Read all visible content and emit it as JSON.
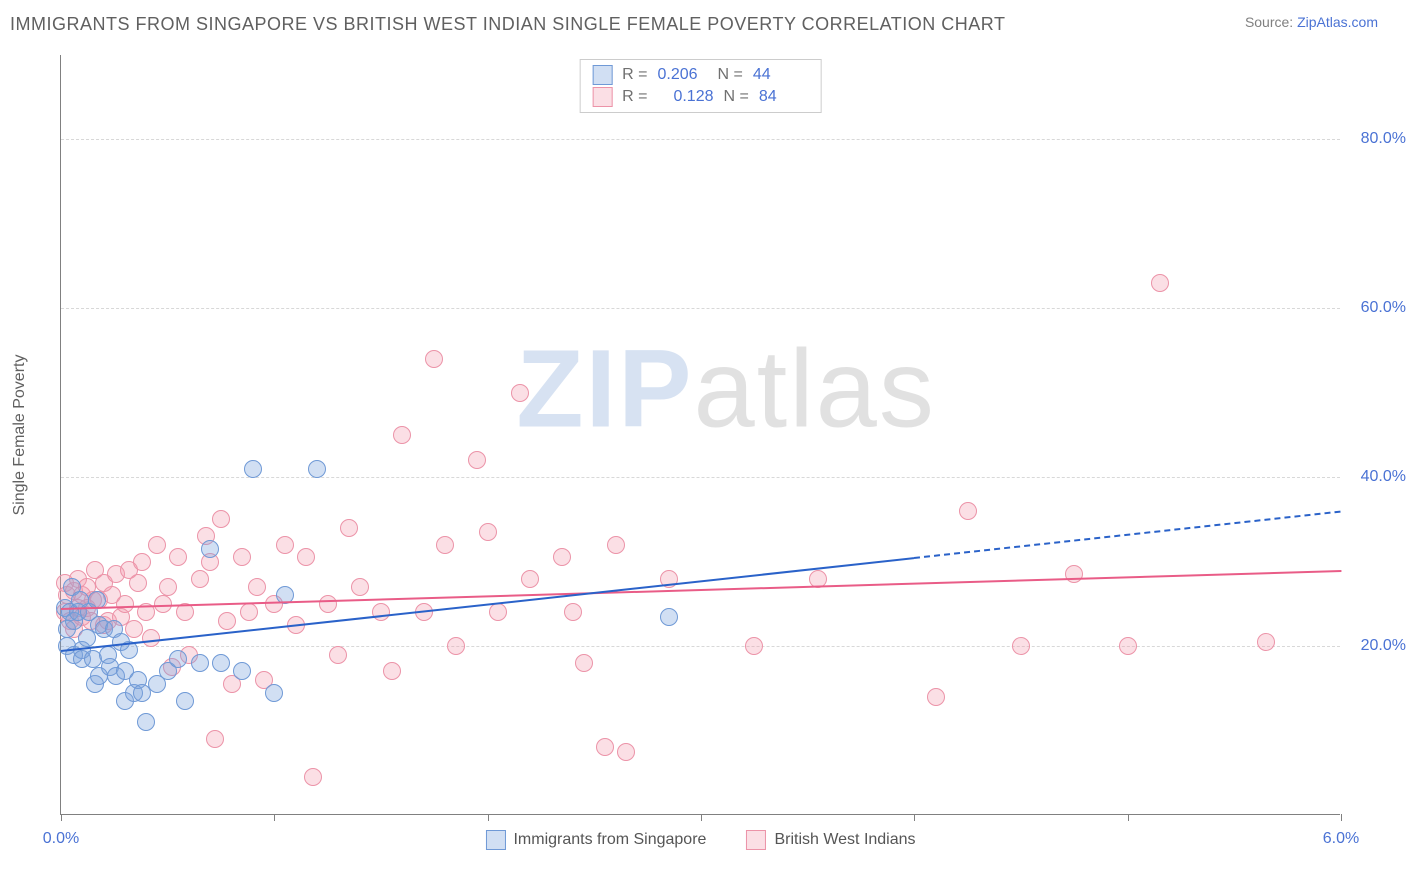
{
  "title": "IMMIGRANTS FROM SINGAPORE VS BRITISH WEST INDIAN SINGLE FEMALE POVERTY CORRELATION CHART",
  "source_label": "Source:",
  "source_site": "ZipAtlas.com",
  "watermark_zip": "ZIP",
  "watermark_rest": "atlas",
  "chart": {
    "type": "scatter",
    "ylabel": "Single Female Poverty",
    "x_min": 0.0,
    "x_max": 6.0,
    "y_min": 0.0,
    "y_max": 90.0,
    "x_ticks": [
      0.0,
      1.0,
      2.0,
      3.0,
      4.0,
      5.0,
      6.0
    ],
    "x_tick_labels": {
      "0": "0.0%",
      "6": "6.0%"
    },
    "y_gridlines": [
      20.0,
      40.0,
      60.0,
      80.0
    ],
    "y_tick_labels": [
      "20.0%",
      "40.0%",
      "60.0%",
      "80.0%"
    ],
    "background_color": "#ffffff",
    "grid_color": "#d8d8d8",
    "axis_color": "#808080",
    "tick_label_color": "#4a72d4",
    "axis_label_color": "#606060",
    "point_radius": 9,
    "series": [
      {
        "key": "singapore",
        "label": "Immigrants from Singapore",
        "fill": "rgba(122,162,221,0.35)",
        "stroke": "#6f99d6",
        "trend_color": "#2a62c9",
        "R": "0.206",
        "N": "44",
        "trend": {
          "x1": 0.0,
          "y1": 19.5,
          "x2": 4.0,
          "y2": 30.5,
          "x_ext": 6.0,
          "y_ext": 36.0
        },
        "points": [
          [
            0.02,
            24.5
          ],
          [
            0.03,
            20.0
          ],
          [
            0.03,
            22.0
          ],
          [
            0.04,
            24.0
          ],
          [
            0.05,
            27.0
          ],
          [
            0.06,
            19.0
          ],
          [
            0.06,
            23.0
          ],
          [
            0.08,
            24.0
          ],
          [
            0.09,
            25.5
          ],
          [
            0.1,
            19.5
          ],
          [
            0.1,
            18.5
          ],
          [
            0.12,
            21.0
          ],
          [
            0.13,
            24.0
          ],
          [
            0.15,
            18.5
          ],
          [
            0.16,
            15.5
          ],
          [
            0.17,
            25.5
          ],
          [
            0.18,
            16.5
          ],
          [
            0.18,
            22.5
          ],
          [
            0.2,
            22.0
          ],
          [
            0.22,
            19.0
          ],
          [
            0.23,
            17.5
          ],
          [
            0.25,
            22.0
          ],
          [
            0.26,
            16.5
          ],
          [
            0.28,
            20.5
          ],
          [
            0.3,
            13.5
          ],
          [
            0.3,
            17.0
          ],
          [
            0.32,
            19.5
          ],
          [
            0.34,
            14.5
          ],
          [
            0.36,
            16.0
          ],
          [
            0.38,
            14.5
          ],
          [
            0.4,
            11.0
          ],
          [
            0.45,
            15.5
          ],
          [
            0.5,
            17.0
          ],
          [
            0.55,
            18.5
          ],
          [
            0.58,
            13.5
          ],
          [
            0.65,
            18.0
          ],
          [
            0.7,
            31.5
          ],
          [
            0.75,
            18.0
          ],
          [
            0.85,
            17.0
          ],
          [
            0.9,
            41.0
          ],
          [
            1.0,
            14.5
          ],
          [
            1.05,
            26.0
          ],
          [
            1.2,
            41.0
          ],
          [
            2.85,
            23.5
          ]
        ]
      },
      {
        "key": "bwi",
        "label": "British West Indians",
        "fill": "rgba(244,154,175,0.32)",
        "stroke": "#ec93a8",
        "trend_color": "#e95c87",
        "R": "0.128",
        "N": "84",
        "trend": {
          "x1": 0.0,
          "y1": 24.5,
          "x2": 6.0,
          "y2": 29.0
        },
        "points": [
          [
            0.02,
            24.0
          ],
          [
            0.02,
            27.5
          ],
          [
            0.03,
            26.0
          ],
          [
            0.04,
            23.0
          ],
          [
            0.06,
            22.0
          ],
          [
            0.06,
            26.5
          ],
          [
            0.08,
            24.5
          ],
          [
            0.08,
            28.0
          ],
          [
            0.1,
            23.5
          ],
          [
            0.1,
            26.0
          ],
          [
            0.12,
            24.5
          ],
          [
            0.12,
            27.0
          ],
          [
            0.14,
            23.0
          ],
          [
            0.15,
            25.5
          ],
          [
            0.16,
            29.0
          ],
          [
            0.18,
            25.5
          ],
          [
            0.2,
            22.5
          ],
          [
            0.2,
            27.5
          ],
          [
            0.22,
            23.0
          ],
          [
            0.24,
            26.0
          ],
          [
            0.26,
            28.5
          ],
          [
            0.28,
            23.5
          ],
          [
            0.3,
            25.0
          ],
          [
            0.32,
            29.0
          ],
          [
            0.34,
            22.0
          ],
          [
            0.36,
            27.5
          ],
          [
            0.38,
            30.0
          ],
          [
            0.4,
            24.0
          ],
          [
            0.42,
            21.0
          ],
          [
            0.45,
            32.0
          ],
          [
            0.48,
            25.0
          ],
          [
            0.5,
            27.0
          ],
          [
            0.52,
            17.5
          ],
          [
            0.55,
            30.5
          ],
          [
            0.58,
            24.0
          ],
          [
            0.6,
            19.0
          ],
          [
            0.65,
            28.0
          ],
          [
            0.68,
            33.0
          ],
          [
            0.7,
            30.0
          ],
          [
            0.72,
            9.0
          ],
          [
            0.75,
            35.0
          ],
          [
            0.78,
            23.0
          ],
          [
            0.8,
            15.5
          ],
          [
            0.85,
            30.5
          ],
          [
            0.88,
            24.0
          ],
          [
            0.92,
            27.0
          ],
          [
            0.95,
            16.0
          ],
          [
            1.0,
            25.0
          ],
          [
            1.05,
            32.0
          ],
          [
            1.1,
            22.5
          ],
          [
            1.15,
            30.5
          ],
          [
            1.18,
            4.5
          ],
          [
            1.25,
            25.0
          ],
          [
            1.3,
            19.0
          ],
          [
            1.35,
            34.0
          ],
          [
            1.4,
            27.0
          ],
          [
            1.5,
            24.0
          ],
          [
            1.55,
            17.0
          ],
          [
            1.6,
            45.0
          ],
          [
            1.7,
            24.0
          ],
          [
            1.75,
            54.0
          ],
          [
            1.8,
            32.0
          ],
          [
            1.85,
            20.0
          ],
          [
            1.95,
            42.0
          ],
          [
            2.0,
            33.5
          ],
          [
            2.05,
            24.0
          ],
          [
            2.15,
            50.0
          ],
          [
            2.2,
            28.0
          ],
          [
            2.35,
            30.5
          ],
          [
            2.4,
            24.0
          ],
          [
            2.45,
            18.0
          ],
          [
            2.55,
            8.0
          ],
          [
            2.6,
            32.0
          ],
          [
            2.65,
            7.5
          ],
          [
            2.85,
            28.0
          ],
          [
            3.25,
            20.0
          ],
          [
            3.55,
            28.0
          ],
          [
            4.1,
            14.0
          ],
          [
            4.25,
            36.0
          ],
          [
            4.75,
            28.5
          ],
          [
            5.0,
            20.0
          ],
          [
            5.15,
            63.0
          ],
          [
            5.65,
            20.5
          ],
          [
            4.5,
            20.0
          ]
        ]
      }
    ]
  }
}
